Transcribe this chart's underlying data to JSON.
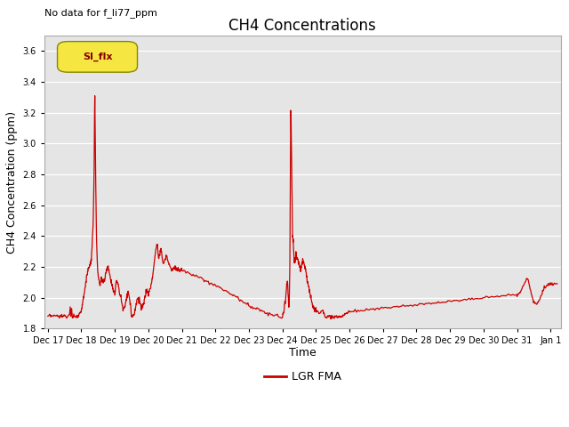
{
  "title": "CH4 Concentrations",
  "top_left_text": "No data for f_li77_ppm",
  "ylabel": "CH4 Concentration (ppm)",
  "xlabel": "Time",
  "ylim": [
    1.8,
    3.7
  ],
  "yticks": [
    1.8,
    2.0,
    2.2,
    2.4,
    2.6,
    2.8,
    3.0,
    3.2,
    3.4,
    3.6
  ],
  "legend_label": "LGR FMA",
  "legend_box_label": "SI_flx",
  "line_color": "#cc0000",
  "bg_color": "#e5e5e5",
  "title_fontsize": 12,
  "label_fontsize": 9,
  "tick_fontsize": 7,
  "x_tick_labels": [
    "Dec 17",
    "Dec 18",
    "Dec 19",
    "Dec 20",
    "Dec 21",
    "Dec 22",
    "Dec 23",
    "Dec 24",
    "Dec 25",
    "Dec 26",
    "Dec 27",
    "Dec 28",
    "Dec 29",
    "Dec 30",
    "Dec 31",
    "Jan 1"
  ],
  "x_positions": [
    0,
    1,
    2,
    3,
    4,
    5,
    6,
    7,
    8,
    9,
    10,
    11,
    12,
    13,
    14,
    15
  ]
}
